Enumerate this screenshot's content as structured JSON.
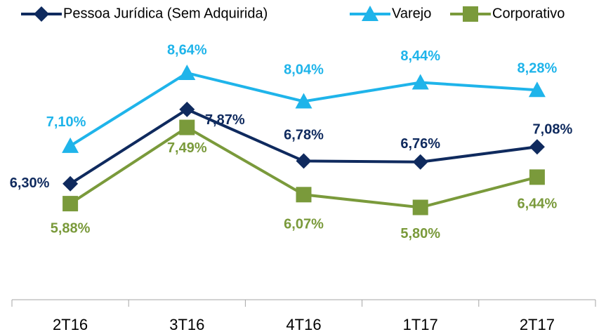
{
  "chart_data": {
    "type": "line",
    "categories": [
      "2T16",
      "3T16",
      "4T16",
      "1T17",
      "2T17"
    ],
    "series": [
      {
        "name": "Pessoa Jurídica (Sem Adquirida)",
        "color": "#0f2a5e",
        "marker": "diamond",
        "values": [
          6.3,
          7.87,
          6.78,
          6.76,
          7.08
        ],
        "value_labels": [
          "6,30%",
          "7,87%",
          "6,78%",
          "6,76%",
          "7,08%"
        ]
      },
      {
        "name": "Varejo",
        "color": "#1fb4ea",
        "marker": "triangle",
        "values": [
          7.1,
          8.64,
          8.04,
          8.44,
          8.28
        ],
        "value_labels": [
          "7,10%",
          "8,64%",
          "8,04%",
          "8,44%",
          "8,28%"
        ]
      },
      {
        "name": "Corporativo",
        "color": "#7a9a3b",
        "marker": "square",
        "values": [
          5.88,
          7.49,
          6.07,
          5.8,
          6.44
        ],
        "value_labels": [
          "5,88%",
          "7,49%",
          "6,07%",
          "5,80%",
          "6,44%"
        ]
      }
    ],
    "ylim": [
      3.85,
      9.5
    ],
    "grid": false,
    "legend": "top"
  }
}
